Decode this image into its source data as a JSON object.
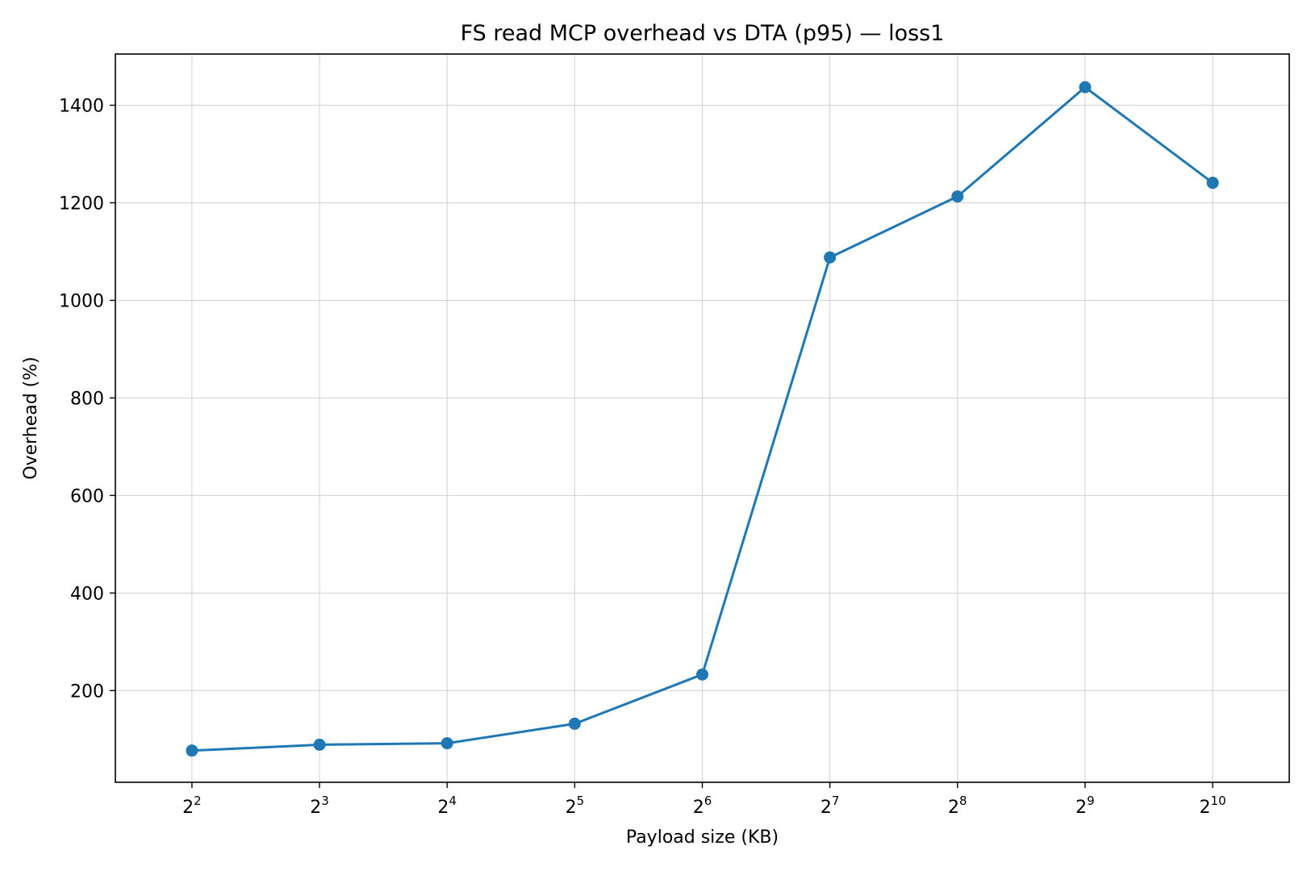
{
  "chart_data": {
    "type": "line",
    "title": "FS read MCP overhead vs DTA (p95) — loss1",
    "xlabel": "Payload size (KB)",
    "ylabel": "Overhead (%)",
    "x_scale": "log2",
    "x_tick_base": "2",
    "x_tick_exponents": [
      "2",
      "3",
      "4",
      "5",
      "6",
      "7",
      "8",
      "9",
      "10"
    ],
    "x": [
      4,
      8,
      16,
      32,
      64,
      128,
      256,
      512,
      1024
    ],
    "y_ticks": [
      200,
      400,
      600,
      800,
      1000,
      1200,
      1400
    ],
    "ylim": [
      12,
      1505
    ],
    "grid": true,
    "series": [
      {
        "values": [
          77,
          89,
          92,
          132,
          233,
          1088,
          1213,
          1437,
          1241
        ],
        "color": "#1f77b4"
      }
    ]
  }
}
